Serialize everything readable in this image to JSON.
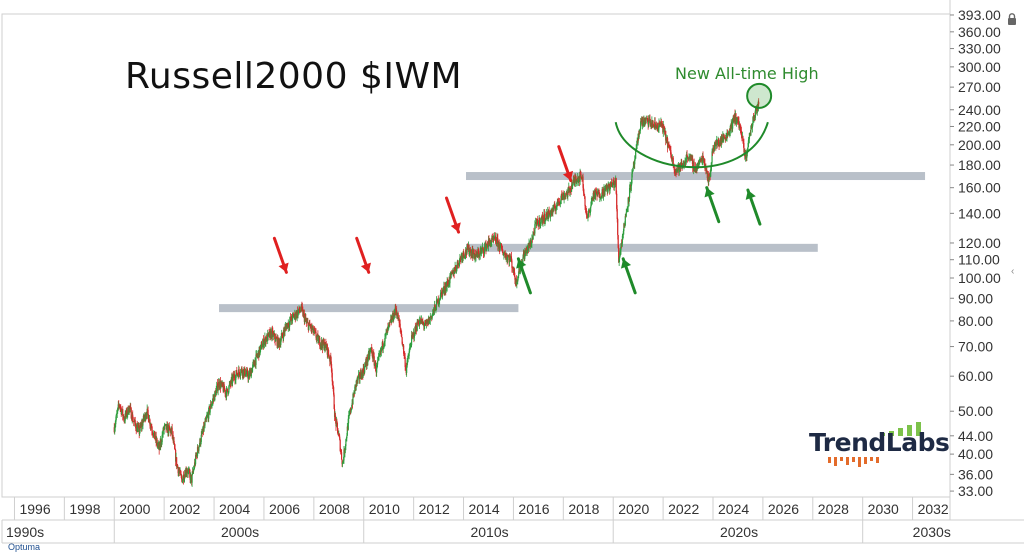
{
  "title": "Russell2000 $IWM",
  "annotation": "New All-time High",
  "logo": "TrendLabs",
  "brand": "Optuma",
  "lock_icon": "lock-icon",
  "colors": {
    "up": "#2e9e3e",
    "down": "#d62a2a",
    "band": "#b9c0c9",
    "red_arrow": "#e02020",
    "green_arrow": "#1f8a2a",
    "green_arc": "#1f8a2a",
    "logo_text": "#1e2a44",
    "logo_bars_green": "#7cc24a",
    "logo_bars_orange": "#e36b2a"
  },
  "chart_data": {
    "type": "line",
    "y_scale": "log",
    "ylim": [
      32,
      395
    ],
    "xlim": [
      1995.5,
      2033.5
    ],
    "yticks": [
      "393.00",
      "360.00",
      "330.00",
      "300.00",
      "270.00",
      "240.00",
      "220.00",
      "200.00",
      "180.00",
      "160.00",
      "140.00",
      "120.00",
      "110.00",
      "100.00",
      "90.00",
      "80.00",
      "70.00",
      "60.00",
      "50.00",
      "44.00",
      "40.00",
      "36.00",
      "33.00"
    ],
    "xticks": [
      "1996",
      "1998",
      "2000",
      "2002",
      "2004",
      "2006",
      "2008",
      "2010",
      "2012",
      "2014",
      "2016",
      "2018",
      "2020",
      "2022",
      "2024",
      "2026",
      "2028",
      "2030",
      "2032"
    ],
    "decades": [
      {
        "label": "1990s",
        "from": 1995.5,
        "to": 2000
      },
      {
        "label": "2000s",
        "from": 2000,
        "to": 2010
      },
      {
        "label": "2010s",
        "from": 2010,
        "to": 2020
      },
      {
        "label": "2020s",
        "from": 2020,
        "to": 2030
      },
      {
        "label": "2030s",
        "from": 2030,
        "to": 2033.5
      }
    ],
    "series": [
      {
        "values": [
          [
            2000.0,
            46
          ],
          [
            2000.2,
            52
          ],
          [
            2000.4,
            48
          ],
          [
            2000.6,
            51
          ],
          [
            2000.8,
            47
          ],
          [
            2001.0,
            45
          ],
          [
            2001.3,
            50
          ],
          [
            2001.6,
            44
          ],
          [
            2001.8,
            41
          ],
          [
            2002.0,
            46
          ],
          [
            2002.3,
            45
          ],
          [
            2002.5,
            38
          ],
          [
            2002.7,
            35
          ],
          [
            2002.9,
            37
          ],
          [
            2003.1,
            35
          ],
          [
            2003.3,
            40
          ],
          [
            2003.6,
            46
          ],
          [
            2003.9,
            52
          ],
          [
            2004.2,
            58
          ],
          [
            2004.5,
            55
          ],
          [
            2004.8,
            60
          ],
          [
            2005.1,
            62
          ],
          [
            2005.4,
            60
          ],
          [
            2005.7,
            66
          ],
          [
            2006.0,
            72
          ],
          [
            2006.3,
            75
          ],
          [
            2006.6,
            71
          ],
          [
            2006.9,
            78
          ],
          [
            2007.2,
            82
          ],
          [
            2007.5,
            85
          ],
          [
            2007.7,
            79
          ],
          [
            2007.9,
            77
          ],
          [
            2008.2,
            72
          ],
          [
            2008.5,
            70
          ],
          [
            2008.7,
            64
          ],
          [
            2008.85,
            48
          ],
          [
            2009.0,
            44
          ],
          [
            2009.15,
            38
          ],
          [
            2009.4,
            48
          ],
          [
            2009.7,
            58
          ],
          [
            2010.0,
            62
          ],
          [
            2010.3,
            69
          ],
          [
            2010.5,
            62
          ],
          [
            2010.8,
            72
          ],
          [
            2011.1,
            80
          ],
          [
            2011.3,
            85
          ],
          [
            2011.5,
            75
          ],
          [
            2011.7,
            62
          ],
          [
            2011.9,
            72
          ],
          [
            2012.2,
            80
          ],
          [
            2012.5,
            78
          ],
          [
            2012.8,
            84
          ],
          [
            2013.1,
            92
          ],
          [
            2013.4,
            98
          ],
          [
            2013.7,
            106
          ],
          [
            2013.95,
            113
          ],
          [
            2014.2,
            116
          ],
          [
            2014.5,
            112
          ],
          [
            2014.8,
            116
          ],
          [
            2015.0,
            120
          ],
          [
            2015.3,
            122
          ],
          [
            2015.6,
            114
          ],
          [
            2015.9,
            110
          ],
          [
            2016.1,
            98
          ],
          [
            2016.4,
            112
          ],
          [
            2016.7,
            120
          ],
          [
            2016.9,
            132
          ],
          [
            2017.3,
            138
          ],
          [
            2017.6,
            142
          ],
          [
            2017.9,
            152
          ],
          [
            2018.2,
            156
          ],
          [
            2018.5,
            168
          ],
          [
            2018.75,
            170
          ],
          [
            2018.95,
            135
          ],
          [
            2019.2,
            154
          ],
          [
            2019.5,
            155
          ],
          [
            2019.8,
            160
          ],
          [
            2020.1,
            165
          ],
          [
            2020.22,
            110
          ],
          [
            2020.35,
            122
          ],
          [
            2020.6,
            150
          ],
          [
            2020.9,
            190
          ],
          [
            2021.1,
            225
          ],
          [
            2021.4,
            226
          ],
          [
            2021.7,
            220
          ],
          [
            2021.95,
            222
          ],
          [
            2022.2,
            200
          ],
          [
            2022.5,
            175
          ],
          [
            2022.8,
            180
          ],
          [
            2023.0,
            190
          ],
          [
            2023.3,
            176
          ],
          [
            2023.6,
            188
          ],
          [
            2023.85,
            165
          ],
          [
            2024.0,
            198
          ],
          [
            2024.3,
            204
          ],
          [
            2024.6,
            212
          ],
          [
            2024.9,
            232
          ],
          [
            2025.1,
            218
          ],
          [
            2025.3,
            185
          ],
          [
            2025.5,
            215
          ],
          [
            2025.7,
            238
          ],
          [
            2025.85,
            246
          ]
        ]
      }
    ]
  }
}
